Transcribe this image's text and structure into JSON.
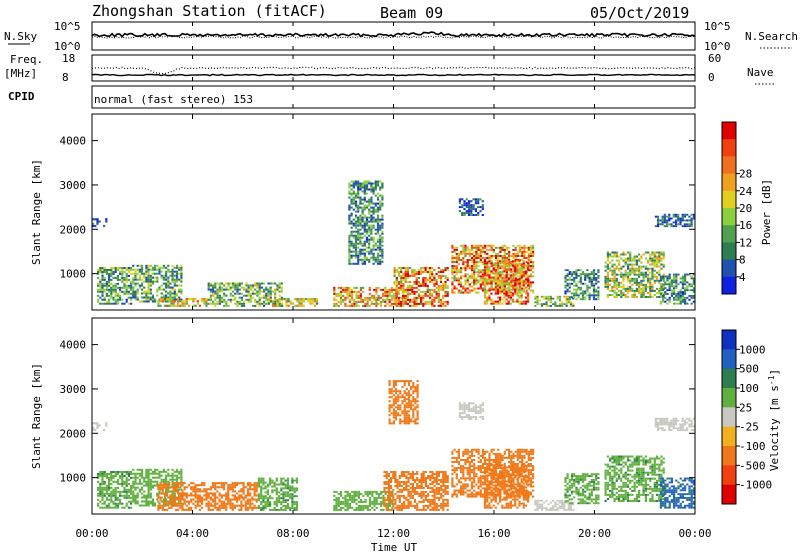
{
  "header": {
    "station": "Zhongshan Station (fitACF)",
    "beam": "Beam 09",
    "date": "05/Oct/2019"
  },
  "strip_panels": {
    "nsky_label": "N.Sky",
    "nsky_ticks": [
      "10^5",
      "10^0"
    ],
    "nsearch_label": "N.Search",
    "nsearch_ticks": [
      "10^5",
      "10^0"
    ],
    "freq_label_1": "Freq.",
    "freq_label_2": "[MHz]",
    "freq_ticks": [
      "18",
      "8"
    ],
    "nave_label": "Nave",
    "nave_ticks": [
      "60",
      "0"
    ],
    "cpid_label": "CPID",
    "cpid_text": "normal (fast stereo) 153"
  },
  "time_axis": {
    "label": "Time UT",
    "ticks": [
      "00:00",
      "04:00",
      "08:00",
      "12:00",
      "16:00",
      "20:00",
      "00:00"
    ]
  },
  "chart_data": [
    {
      "type": "heatmap",
      "title": "",
      "xlabel": "Time UT",
      "ylabel": "Slant Range [km]",
      "xlim": [
        0,
        24
      ],
      "ylim": [
        180,
        4600
      ],
      "yticks": [
        "1000",
        "2000",
        "3000",
        "4000"
      ],
      "colorbar": {
        "label": "Power [dB]",
        "ticks": [
          "4",
          "8",
          "12",
          "16",
          "20",
          "24",
          "28"
        ],
        "range": [
          0,
          32
        ],
        "colors": [
          "#1020e0",
          "#2050b0",
          "#2e7d4f",
          "#50a050",
          "#8ad040",
          "#e0d020",
          "#f0a020",
          "#f07020",
          "#f04010",
          "#e00000"
        ]
      },
      "regions": [
        {
          "t": [
            0.2,
            1.6
          ],
          "r": [
            300,
            1150
          ],
          "v": 10
        },
        {
          "t": [
            0.0,
            0.7
          ],
          "r": [
            2050,
            2250
          ],
          "v": 6
        },
        {
          "t": [
            1.6,
            3.6
          ],
          "r": [
            350,
            1200
          ],
          "v": 11
        },
        {
          "t": [
            2.6,
            4.6
          ],
          "r": [
            250,
            450
          ],
          "v": 18
        },
        {
          "t": [
            4.6,
            7.6
          ],
          "r": [
            250,
            800
          ],
          "v": 12
        },
        {
          "t": [
            7.0,
            9.0
          ],
          "r": [
            250,
            450
          ],
          "v": 16
        },
        {
          "t": [
            9.6,
            12.6
          ],
          "r": [
            250,
            700
          ],
          "v": 21
        },
        {
          "t": [
            12.0,
            14.2
          ],
          "r": [
            250,
            1150
          ],
          "v": 23
        },
        {
          "t": [
            14.3,
            17.6
          ],
          "r": [
            550,
            1650
          ],
          "v": 22
        },
        {
          "t": [
            15.6,
            17.4
          ],
          "r": [
            300,
            1300
          ],
          "v": 24
        },
        {
          "t": [
            17.6,
            19.2
          ],
          "r": [
            250,
            500
          ],
          "v": 13
        },
        {
          "t": [
            18.8,
            20.2
          ],
          "r": [
            400,
            1100
          ],
          "v": 9
        },
        {
          "t": [
            20.4,
            22.8
          ],
          "r": [
            450,
            1500
          ],
          "v": 14
        },
        {
          "t": [
            22.6,
            24.0
          ],
          "r": [
            300,
            1000
          ],
          "v": 9
        },
        {
          "t": [
            22.4,
            24.0
          ],
          "r": [
            2050,
            2350
          ],
          "v": 6
        },
        {
          "t": [
            14.6,
            15.6
          ],
          "r": [
            2300,
            2700
          ],
          "v": 5
        },
        {
          "t": [
            10.2,
            11.6
          ],
          "r": [
            1200,
            3100
          ],
          "v": 9
        }
      ]
    },
    {
      "type": "heatmap",
      "title": "",
      "xlabel": "Time UT",
      "ylabel": "Slant Range [km]",
      "xlim": [
        0,
        24
      ],
      "ylim": [
        180,
        4600
      ],
      "yticks": [
        "1000",
        "2000",
        "3000",
        "4000"
      ],
      "colorbar": {
        "label": "Velocity [m s^-1]",
        "ticks": [
          "1000",
          "500",
          "100",
          "25",
          "-25",
          "-100",
          "-500",
          "-1000"
        ],
        "colors": [
          "#1030c0",
          "#2060c0",
          "#2e7d4f",
          "#60b040",
          "#c8c8c0",
          "#f0b020",
          "#f07818",
          "#f04010",
          "#e00000"
        ]
      },
      "regions": [
        {
          "t": [
            0.2,
            1.6
          ],
          "r": [
            300,
            1150
          ],
          "v": 80
        },
        {
          "t": [
            0.0,
            0.7
          ],
          "r": [
            2050,
            2250
          ],
          "v": 0
        },
        {
          "t": [
            1.6,
            3.6
          ],
          "r": [
            350,
            1200
          ],
          "v": 60
        },
        {
          "t": [
            2.6,
            6.6
          ],
          "r": [
            250,
            900
          ],
          "v": -150
        },
        {
          "t": [
            6.6,
            8.2
          ],
          "r": [
            250,
            1000
          ],
          "v": 80
        },
        {
          "t": [
            9.6,
            12.0
          ],
          "r": [
            250,
            700
          ],
          "v": 60
        },
        {
          "t": [
            11.6,
            14.2
          ],
          "r": [
            250,
            1150
          ],
          "v": -200
        },
        {
          "t": [
            14.3,
            17.6
          ],
          "r": [
            550,
            1650
          ],
          "v": -180
        },
        {
          "t": [
            15.6,
            17.4
          ],
          "r": [
            300,
            1300
          ],
          "v": -250
        },
        {
          "t": [
            17.6,
            19.2
          ],
          "r": [
            250,
            500
          ],
          "v": 0
        },
        {
          "t": [
            18.8,
            20.2
          ],
          "r": [
            400,
            1100
          ],
          "v": 80
        },
        {
          "t": [
            20.4,
            22.8
          ],
          "r": [
            450,
            1500
          ],
          "v": 80
        },
        {
          "t": [
            22.6,
            24.0
          ],
          "r": [
            300,
            1000
          ],
          "v": 600
        },
        {
          "t": [
            22.4,
            24.0
          ],
          "r": [
            2050,
            2350
          ],
          "v": 0
        },
        {
          "t": [
            14.6,
            15.6
          ],
          "r": [
            2300,
            2700
          ],
          "v": 0
        },
        {
          "t": [
            11.8,
            13.0
          ],
          "r": [
            2200,
            3200
          ],
          "v": -150
        }
      ]
    }
  ]
}
